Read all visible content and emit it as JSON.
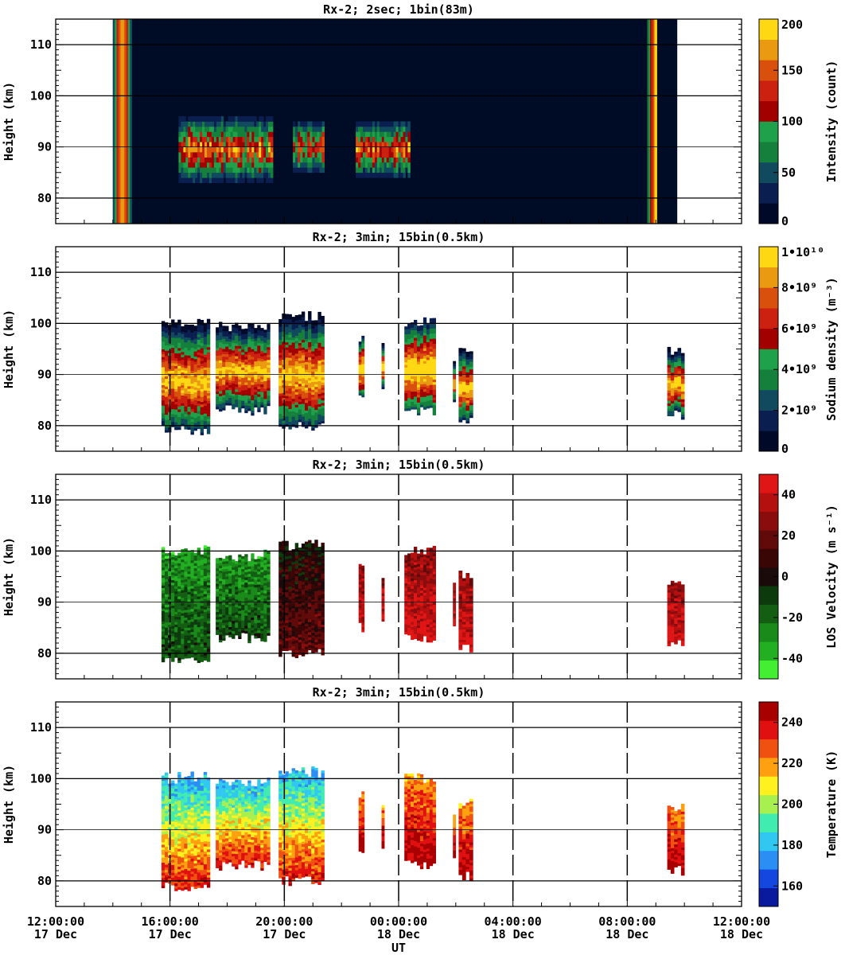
{
  "chart_data": [
    {
      "type": "heatmap",
      "title": "Rx-2;  2sec; 1bin(83m)",
      "ylabel": "Height (km)",
      "ylim": [
        75,
        115
      ],
      "yticks": [
        80,
        90,
        100,
        110
      ],
      "xlim_hours": [
        0,
        24
      ],
      "grid": "horizontal",
      "colorbar": {
        "label": "Intensity (count)",
        "range": [
          0,
          200
        ],
        "ticks": [
          "0",
          "50",
          "100",
          "150",
          "200"
        ],
        "colors": [
          "#000a28",
          "#0a1e50",
          "#114a5e",
          "#14803c",
          "#1fa04a",
          "#a20000",
          "#cc2010",
          "#d9500c",
          "#ea9a10",
          "#ffd814"
        ]
      },
      "data_spans_hours": [
        [
          2.0,
          21.75
        ]
      ],
      "bright_layers": [
        {
          "x": [
            4.3,
            7.6
          ],
          "y": [
            82,
            97
          ]
        },
        {
          "x": [
            8.3,
            9.4
          ],
          "y": [
            84,
            96
          ]
        },
        {
          "x": [
            10.5,
            12.4
          ],
          "y": [
            83,
            96
          ]
        }
      ],
      "sunlit_edges_hours": [
        [
          2.0,
          2.6
        ],
        [
          20.7,
          21.0
        ]
      ]
    },
    {
      "type": "heatmap",
      "title": "Rx-2; 3min; 15bin(0.5km)",
      "ylabel": "Height (km)",
      "ylim": [
        75,
        115
      ],
      "yticks": [
        80,
        90,
        100,
        110
      ],
      "xlim_hours": [
        0,
        24
      ],
      "grid": "horizontal",
      "colorbar": {
        "label": "Sodium density (m⁻³)",
        "range": [
          0,
          10000000000.0
        ],
        "ticks": [
          "0",
          "2•10⁹",
          "4•10⁹",
          "6•10⁹",
          "8•10⁹",
          "1•10¹⁰"
        ],
        "colors": [
          "#000a28",
          "#0a1e50",
          "#114a5e",
          "#14803c",
          "#1fa04a",
          "#a20000",
          "#cc2010",
          "#d9500c",
          "#ea9a10",
          "#ffd814"
        ]
      },
      "data_blocks": [
        {
          "x": [
            3.7,
            5.4
          ],
          "y": [
            78,
            101
          ]
        },
        {
          "x": [
            5.6,
            7.5
          ],
          "y": [
            82,
            100
          ]
        },
        {
          "x": [
            7.8,
            9.4
          ],
          "y": [
            79,
            102
          ]
        },
        {
          "x": [
            10.6,
            10.8
          ],
          "y": [
            84,
            98
          ]
        },
        {
          "x": [
            11.4,
            11.5
          ],
          "y": [
            86,
            96
          ]
        },
        {
          "x": [
            12.2,
            13.3
          ],
          "y": [
            82,
            101
          ]
        },
        {
          "x": [
            13.9,
            14.0
          ],
          "y": [
            84,
            94
          ]
        },
        {
          "x": [
            14.1,
            14.6
          ],
          "y": [
            80,
            96
          ]
        },
        {
          "x": [
            21.4,
            22.0
          ],
          "y": [
            81,
            95
          ]
        }
      ],
      "x_dashed_lines_hours": [
        4,
        8,
        12,
        16,
        20
      ]
    },
    {
      "type": "heatmap",
      "title": "Rx-2; 3min; 15bin(0.5km)",
      "ylabel": "Height (km)",
      "ylim": [
        75,
        115
      ],
      "yticks": [
        80,
        90,
        100,
        110
      ],
      "xlim_hours": [
        0,
        24
      ],
      "grid": "horizontal",
      "colorbar": {
        "label": "LOS Velocity (m s⁻¹)",
        "range": [
          -50,
          50
        ],
        "ticks": [
          "-40",
          "-20",
          "0",
          "20",
          "40"
        ],
        "colors": [
          "#44ee33",
          "#22b022",
          "#1a8a1a",
          "#135e13",
          "#0c3a0c",
          "#1a0a0a",
          "#3a0505",
          "#600a0a",
          "#8a0c0c",
          "#b51010",
          "#e01515"
        ]
      },
      "data_blocks": [
        {
          "x": [
            3.7,
            5.4
          ],
          "y": [
            78,
            101
          ]
        },
        {
          "x": [
            5.6,
            7.5
          ],
          "y": [
            82,
            100
          ]
        },
        {
          "x": [
            7.8,
            9.4
          ],
          "y": [
            79,
            102
          ]
        },
        {
          "x": [
            10.6,
            10.8
          ],
          "y": [
            84,
            98
          ]
        },
        {
          "x": [
            11.4,
            11.5
          ],
          "y": [
            86,
            96
          ]
        },
        {
          "x": [
            12.2,
            13.3
          ],
          "y": [
            82,
            101
          ]
        },
        {
          "x": [
            13.9,
            14.0
          ],
          "y": [
            84,
            94
          ]
        },
        {
          "x": [
            14.1,
            14.6
          ],
          "y": [
            80,
            96
          ]
        },
        {
          "x": [
            21.4,
            22.0
          ],
          "y": [
            81,
            95
          ]
        }
      ],
      "x_dashed_lines_hours": [
        4,
        8,
        12,
        16,
        20
      ]
    },
    {
      "type": "heatmap",
      "title": "Rx-2; 3min; 15bin(0.5km)",
      "ylabel": "Height (km)",
      "xlabel": "UT",
      "ylim": [
        75,
        115
      ],
      "yticks": [
        80,
        90,
        100,
        110
      ],
      "xlim_hours": [
        0,
        24
      ],
      "xticks": [
        {
          "time": "12:00:00",
          "date": "17 Dec"
        },
        {
          "time": "16:00:00",
          "date": "17 Dec"
        },
        {
          "time": "20:00:00",
          "date": "17 Dec"
        },
        {
          "time": "00:00:00",
          "date": "18 Dec"
        },
        {
          "time": "04:00:00",
          "date": "18 Dec"
        },
        {
          "time": "08:00:00",
          "date": "18 Dec"
        },
        {
          "time": "12:00:00",
          "date": "18 Dec"
        }
      ],
      "grid": "horizontal",
      "colorbar": {
        "label": "Temperature (K)",
        "range": [
          150,
          250
        ],
        "ticks": [
          "160",
          "180",
          "200",
          "220",
          "240"
        ],
        "colors": [
          "#0a1a9e",
          "#1446e0",
          "#2a8ef5",
          "#30c8f0",
          "#40ecb0",
          "#a8f050",
          "#fff020",
          "#ffa010",
          "#f05010",
          "#e01010",
          "#a80000"
        ]
      },
      "data_blocks": [
        {
          "x": [
            3.7,
            5.4
          ],
          "y": [
            78,
            101
          ]
        },
        {
          "x": [
            5.6,
            7.5
          ],
          "y": [
            82,
            100
          ]
        },
        {
          "x": [
            7.8,
            9.4
          ],
          "y": [
            79,
            102
          ]
        },
        {
          "x": [
            10.6,
            10.8
          ],
          "y": [
            84,
            98
          ]
        },
        {
          "x": [
            11.4,
            11.5
          ],
          "y": [
            86,
            96
          ]
        },
        {
          "x": [
            12.2,
            13.3
          ],
          "y": [
            82,
            101
          ]
        },
        {
          "x": [
            13.9,
            14.0
          ],
          "y": [
            84,
            94
          ]
        },
        {
          "x": [
            14.1,
            14.6
          ],
          "y": [
            80,
            96
          ]
        },
        {
          "x": [
            21.4,
            22.0
          ],
          "y": [
            81,
            95
          ]
        }
      ],
      "x_dashed_lines_hours": [
        4,
        8,
        12,
        16,
        20
      ]
    }
  ]
}
